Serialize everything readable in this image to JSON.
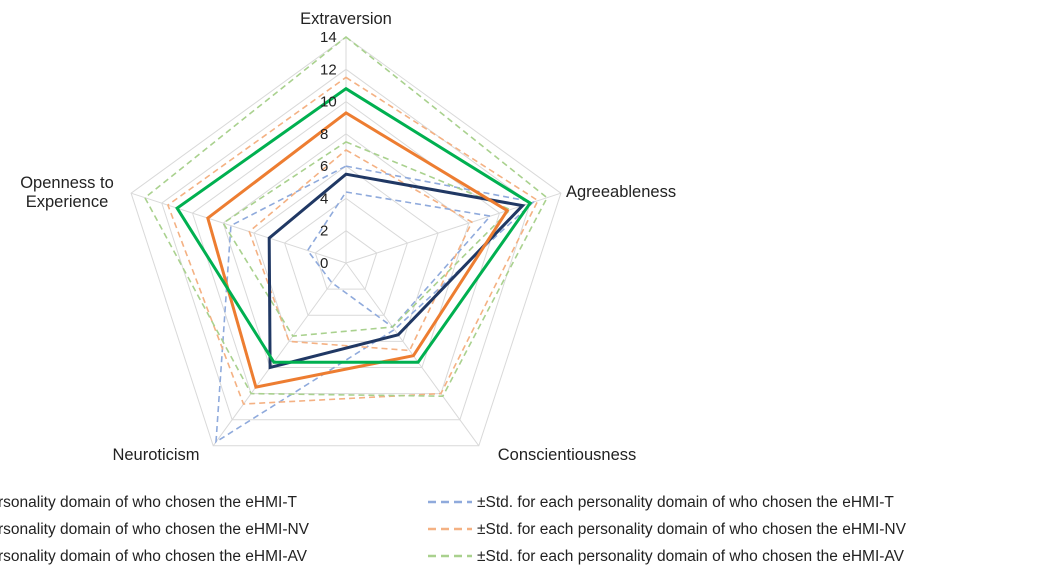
{
  "chart_data": {
    "type": "radar",
    "axes": [
      "Extraversion",
      "Agreeableness",
      "Conscientiousness",
      "Neuroticism",
      "Openness to Experience"
    ],
    "axis_label_lines": [
      [
        "Extraversion"
      ],
      [
        "Agreeableness"
      ],
      [
        "Conscientiousness"
      ],
      [
        "Neuroticism"
      ],
      [
        "Openness to",
        "Experience"
      ]
    ],
    "rlim": [
      0,
      14
    ],
    "ticks": [
      0,
      2,
      4,
      6,
      8,
      10,
      12,
      14
    ],
    "tick_labels": [
      "0",
      "2",
      "4",
      "6",
      "8",
      "10",
      "12",
      "14"
    ],
    "grid": true,
    "series": [
      {
        "name": "Mean for each personality domain of who chosen the eHMI-T",
        "values": [
          5.5,
          11.5,
          5.5,
          8.0,
          5.0
        ],
        "color": "#203864",
        "style": "solid"
      },
      {
        "name": "Mean for each personality domain of who chosen the eHMI-NV",
        "values": [
          9.3,
          10.5,
          7.1,
          9.5,
          9.0
        ],
        "color": "#ed7d31",
        "style": "solid"
      },
      {
        "name": "Mean for each personality domain of who chosen the eHMI-AV",
        "values": [
          10.8,
          12.0,
          7.6,
          7.6,
          11.0
        ],
        "color": "#00b050",
        "style": "solid"
      },
      {
        "name": "±Std. for each personality domain of who chosen the eHMI-T",
        "values": [
          6.0,
          12.2,
          5.1,
          13.7,
          7.5
        ],
        "color": "#8faadc",
        "style": "dashed"
      },
      {
        "name": "",
        "values": [
          4.4,
          9.4,
          4.9,
          1.5,
          2.5
        ],
        "color": "#8faadc",
        "style": "dashed"
      },
      {
        "name": "±Std. for each personality domain of who chosen the eHMI-NV",
        "values": [
          11.5,
          12.5,
          10.0,
          10.8,
          11.6
        ],
        "color": "#f4b183",
        "style": "dashed"
      },
      {
        "name": "",
        "values": [
          7.0,
          8.2,
          6.7,
          6.0,
          6.3
        ],
        "color": "#f4b183",
        "style": "dashed"
      },
      {
        "name": "±Std. for each personality domain of who chosen the eHMI-AV",
        "values": [
          14.0,
          13.1,
          10.2,
          10.0,
          13.1
        ],
        "color": "#a9d18e",
        "style": "dashed"
      },
      {
        "name": "",
        "values": [
          7.5,
          10.7,
          4.9,
          5.6,
          8.0
        ],
        "color": "#a9d18e",
        "style": "dashed"
      }
    ],
    "legend": {
      "placement": "bottom",
      "left_column_entries": [
        "rsonality domain of who chosen the eHMI-T",
        "rsonality domain of who chosen the eHMI-NV",
        "rsonality domain of who chosen the eHMI-AV"
      ],
      "left_column_series": [
        0,
        1,
        2
      ],
      "right_column_entries": [
        "±Std. for each personality domain of who chosen the eHMI-T",
        "±Std. for each personality domain of who chosen the eHMI-NV",
        "±Std. for each personality domain of who chosen the eHMI-AV"
      ],
      "right_column_series": [
        3,
        5,
        7
      ]
    }
  }
}
